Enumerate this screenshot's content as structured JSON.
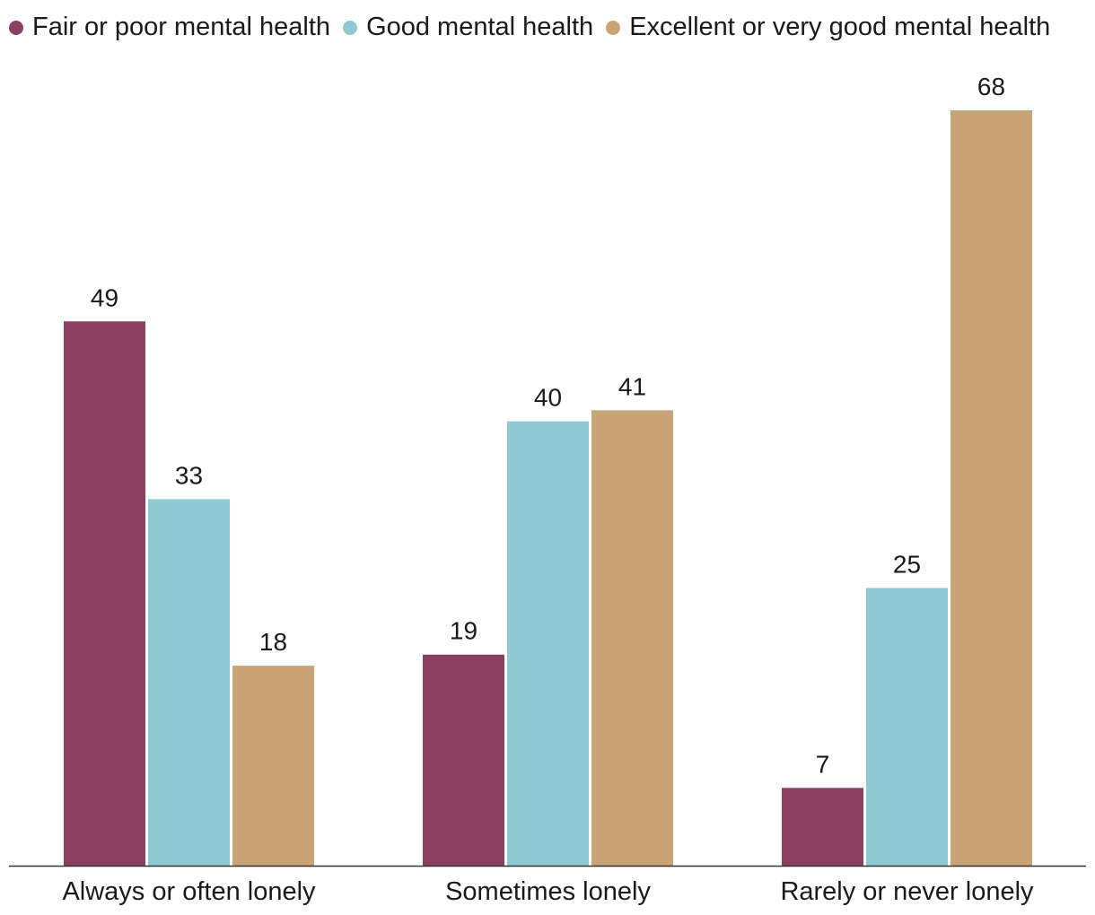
{
  "chart_data": {
    "type": "bar",
    "categories": [
      "Always or often lonely",
      "Sometimes lonely",
      "Rarely or never lonely"
    ],
    "series": [
      {
        "name": "Fair or poor mental health",
        "color": "#8b3f61",
        "values": [
          49,
          19,
          7
        ]
      },
      {
        "name": "Good mental health",
        "color": "#8fc9d3",
        "values": [
          33,
          40,
          25
        ]
      },
      {
        "name": "Excellent or very good mental health",
        "color": "#c8a477",
        "values": [
          18,
          41,
          68
        ]
      }
    ],
    "title": "",
    "xlabel": "",
    "ylabel": "",
    "ylim": [
      0,
      68
    ],
    "grid": false,
    "legend": "top-left"
  }
}
